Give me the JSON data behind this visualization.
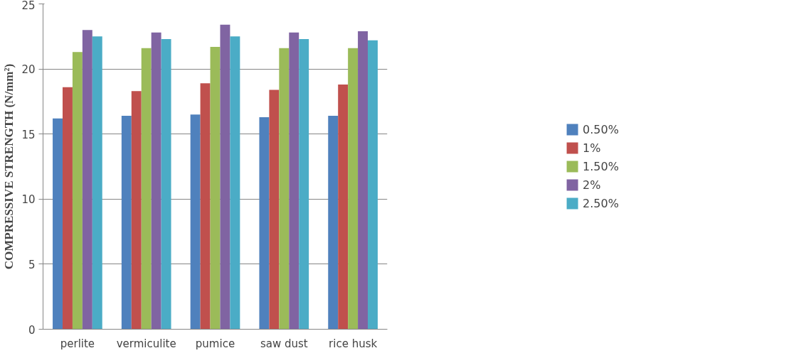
{
  "chart_data": {
    "type": "bar",
    "ylabel": "COMPRESSIVE STRENGTH (N/mm²)",
    "categories": [
      "perlite",
      "vermiculite",
      "pumice",
      "saw dust",
      "rice husk"
    ],
    "series": [
      {
        "name": "0.50%",
        "color": "#4f81bd",
        "values": [
          16.2,
          16.4,
          16.5,
          16.3,
          16.4
        ]
      },
      {
        "name": "1%",
        "color": "#c0504d",
        "values": [
          18.6,
          18.3,
          18.9,
          18.4,
          18.8
        ]
      },
      {
        "name": "1.50%",
        "color": "#9bbb59",
        "values": [
          21.3,
          21.6,
          21.7,
          21.6,
          21.6
        ]
      },
      {
        "name": "2%",
        "color": "#8064a2",
        "values": [
          23.0,
          22.8,
          23.4,
          22.8,
          22.9
        ]
      },
      {
        "name": "2.50%",
        "color": "#4bacc6",
        "values": [
          22.5,
          22.3,
          22.5,
          22.3,
          22.2
        ]
      }
    ],
    "ylim": [
      0,
      25
    ],
    "yticks": [
      0,
      5,
      10,
      15,
      20,
      25
    ],
    "grid": "y",
    "legend": "right"
  }
}
